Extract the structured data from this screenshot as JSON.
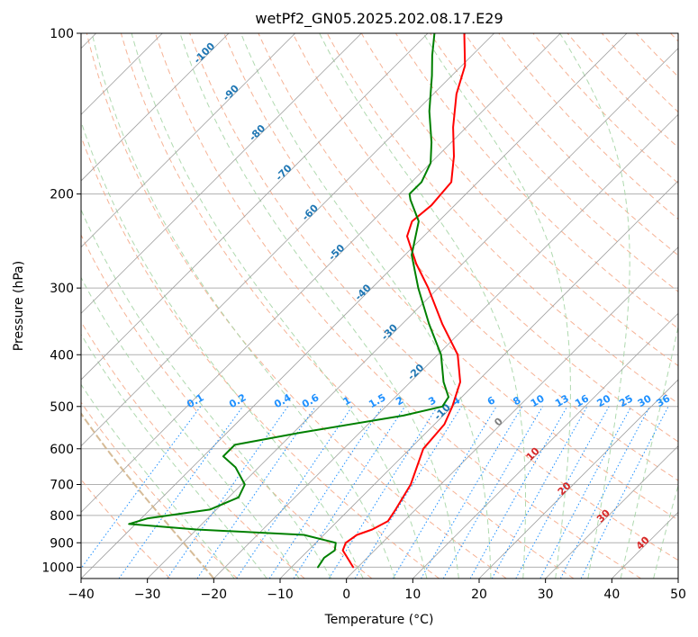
{
  "chart_data": {
    "type": "line",
    "chart_kind": "Skew-T log-P diagram",
    "title": "wetPf2_GN05.2025.202.08.17.E29",
    "xlabel": "Temperature (°C)",
    "ylabel": "Pressure (hPa)",
    "xlim": [
      -40,
      50
    ],
    "ylim": [
      1050,
      100
    ],
    "y_scale": "log",
    "grid": true,
    "x_ticks": [
      -40,
      -30,
      -20,
      -10,
      0,
      10,
      20,
      30,
      40,
      50
    ],
    "x_tick_labels": [
      "−40",
      "−30",
      "−20",
      "−10",
      "0",
      "10",
      "20",
      "30",
      "40",
      "50"
    ],
    "y_ticks": [
      1000,
      900,
      800,
      700,
      600,
      500,
      400,
      300,
      200,
      100
    ],
    "y_tick_labels": [
      "1000",
      "900",
      "800",
      "700",
      "600",
      "500",
      "400",
      "300",
      "200",
      "100"
    ],
    "reference_lines": {
      "isotherms_color": "#999999",
      "dry_adiabats_color": "#f4a582",
      "moist_adiabats_color": "#a6d5a6",
      "mixing_ratio_color": "#1e90ff",
      "wet_bulb_isotherm_color": "#d2b48c"
    },
    "series": [
      {
        "role": "temperature",
        "color": "#ff0000",
        "points": [
          {
            "p": 1000,
            "t": -0.7
          },
          {
            "p": 960,
            "t": -3.0
          },
          {
            "p": 930,
            "t": -4.8
          },
          {
            "p": 900,
            "t": -5.5
          },
          {
            "p": 870,
            "t": -5.0
          },
          {
            "p": 850,
            "t": -3.5
          },
          {
            "p": 820,
            "t": -2.4
          },
          {
            "p": 780,
            "t": -3.0
          },
          {
            "p": 700,
            "t": -4.5
          },
          {
            "p": 600,
            "t": -8.0
          },
          {
            "p": 540,
            "t": -8.5
          },
          {
            "p": 500,
            "t": -10.0
          },
          {
            "p": 450,
            "t": -12.5
          },
          {
            "p": 400,
            "t": -17.0
          },
          {
            "p": 350,
            "t": -24.0
          },
          {
            "p": 300,
            "t": -31.5
          },
          {
            "p": 270,
            "t": -37.0
          },
          {
            "p": 240,
            "t": -42.5
          },
          {
            "p": 225,
            "t": -44.0
          },
          {
            "p": 210,
            "t": -43.5
          },
          {
            "p": 190,
            "t": -44.0
          },
          {
            "p": 170,
            "t": -47.5
          },
          {
            "p": 150,
            "t": -52.0
          },
          {
            "p": 130,
            "t": -56.5
          },
          {
            "p": 115,
            "t": -59.5
          },
          {
            "p": 100,
            "t": -64.5
          }
        ]
      },
      {
        "role": "dewpoint",
        "color": "#008000",
        "points": [
          {
            "p": 1000,
            "t": -6.0
          },
          {
            "p": 960,
            "t": -6.5
          },
          {
            "p": 930,
            "t": -6.0
          },
          {
            "p": 900,
            "t": -7.0
          },
          {
            "p": 870,
            "t": -13.0
          },
          {
            "p": 850,
            "t": -30.0
          },
          {
            "p": 830,
            "t": -41.0
          },
          {
            "p": 810,
            "t": -39.0
          },
          {
            "p": 780,
            "t": -31.0
          },
          {
            "p": 740,
            "t": -28.5
          },
          {
            "p": 700,
            "t": -29.5
          },
          {
            "p": 650,
            "t": -33.5
          },
          {
            "p": 620,
            "t": -37.0
          },
          {
            "p": 590,
            "t": -37.0
          },
          {
            "p": 560,
            "t": -29.0
          },
          {
            "p": 520,
            "t": -16.0
          },
          {
            "p": 500,
            "t": -11.5
          },
          {
            "p": 480,
            "t": -12.0
          },
          {
            "p": 450,
            "t": -15.0
          },
          {
            "p": 400,
            "t": -19.5
          },
          {
            "p": 350,
            "t": -26.0
          },
          {
            "p": 300,
            "t": -33.0
          },
          {
            "p": 260,
            "t": -39.0
          },
          {
            "p": 225,
            "t": -43.0
          },
          {
            "p": 205,
            "t": -47.5
          },
          {
            "p": 200,
            "t": -48.5
          },
          {
            "p": 190,
            "t": -48.5
          },
          {
            "p": 175,
            "t": -50.0
          },
          {
            "p": 160,
            "t": -53.0
          },
          {
            "p": 140,
            "t": -58.0
          },
          {
            "p": 120,
            "t": -63.0
          },
          {
            "p": 110,
            "t": -66.0
          },
          {
            "p": 100,
            "t": -69.0
          }
        ]
      }
    ],
    "isotherm_labels": {
      "values": [
        -100,
        -90,
        -80,
        -70,
        -60,
        -50,
        -40,
        -30,
        -20,
        -10
      ],
      "text": [
        "-100",
        "-90",
        "-80",
        "-70",
        "-60",
        "-50",
        "-40",
        "-30",
        "-20",
        "-10"
      ],
      "color": "#1f77b4"
    },
    "mixing_ratio_labels": {
      "values": [
        0.1,
        0.2,
        0.4,
        0.6,
        1,
        1.5,
        2,
        3,
        4,
        6,
        8,
        10,
        13,
        16,
        20,
        25,
        30,
        36
      ],
      "text": [
        "0.1",
        "0.2",
        "0.4",
        "0.6",
        "1",
        "1.5",
        "2",
        "3",
        "4",
        "6",
        "8",
        "10",
        "13",
        "16",
        "20",
        "25",
        "30",
        "36"
      ],
      "color": "#1e90ff"
    },
    "zero_isotherm_label": {
      "text": "0",
      "color": "#808080"
    },
    "warm_isotherm_labels": {
      "values": [
        10,
        20,
        30,
        40
      ],
      "text": [
        "10",
        "20",
        "30",
        "40"
      ],
      "color": "#d62728"
    }
  }
}
